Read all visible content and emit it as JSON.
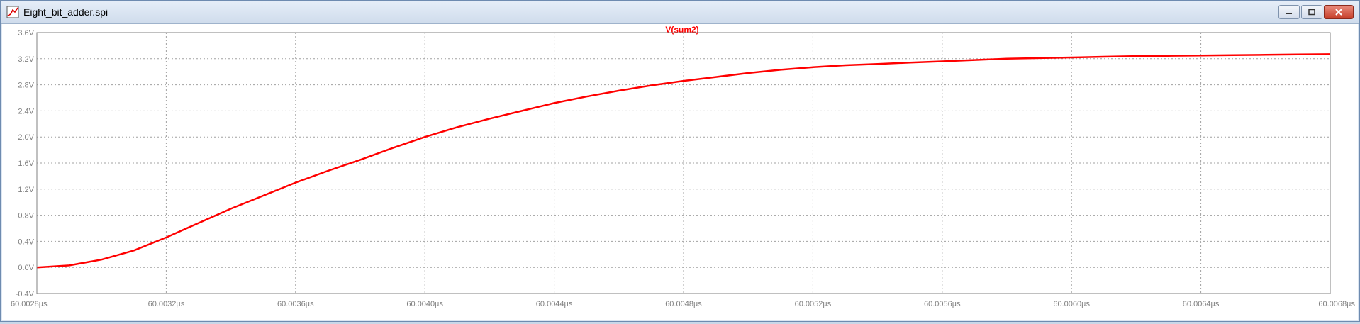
{
  "window": {
    "title": "Eight_bit_adder.spi",
    "buttons": {
      "minimize_icon": "minimize-icon",
      "restore_icon": "restore-icon",
      "close_icon": "close-icon"
    }
  },
  "chart_data": {
    "type": "line",
    "title": "V(sum2)",
    "xlabel": "",
    "ylabel": "",
    "x_unit": "µs",
    "y_unit": "V",
    "xlim": [
      60.0028,
      60.0068
    ],
    "ylim": [
      -0.4,
      3.6
    ],
    "x_ticks": [
      "60.0028µs",
      "60.0032µs",
      "60.0036µs",
      "60.0040µs",
      "60.0044µs",
      "60.0048µs",
      "60.0052µs",
      "60.0056µs",
      "60.0060µs",
      "60.0064µs",
      "60.0068µs"
    ],
    "y_ticks": [
      "3.6V",
      "3.2V",
      "2.8V",
      "2.4V",
      "2.0V",
      "1.6V",
      "1.2V",
      "0.8V",
      "0.4V",
      "0.0V",
      "-0.4V"
    ],
    "grid": true,
    "series": [
      {
        "name": "V(sum2)",
        "color": "#ff0000",
        "x": [
          60.0028,
          60.0029,
          60.003,
          60.0031,
          60.0032,
          60.0033,
          60.0034,
          60.0035,
          60.0036,
          60.0037,
          60.0038,
          60.0039,
          60.004,
          60.0041,
          60.0042,
          60.0043,
          60.0044,
          60.0045,
          60.0046,
          60.0047,
          60.0048,
          60.0049,
          60.005,
          60.0051,
          60.0052,
          60.0053,
          60.0054,
          60.0055,
          60.0056,
          60.0057,
          60.0058,
          60.0059,
          60.006,
          60.0061,
          60.0062,
          60.0063,
          60.0064,
          60.0065,
          60.0066,
          60.0067,
          60.0068
        ],
        "y": [
          0.0,
          0.03,
          0.12,
          0.26,
          0.46,
          0.68,
          0.9,
          1.1,
          1.3,
          1.48,
          1.65,
          1.83,
          2.0,
          2.15,
          2.28,
          2.4,
          2.52,
          2.62,
          2.71,
          2.79,
          2.86,
          2.92,
          2.98,
          3.03,
          3.07,
          3.1,
          3.12,
          3.14,
          3.16,
          3.18,
          3.2,
          3.21,
          3.22,
          3.23,
          3.24,
          3.245,
          3.25,
          3.255,
          3.26,
          3.265,
          3.27
        ]
      }
    ]
  }
}
